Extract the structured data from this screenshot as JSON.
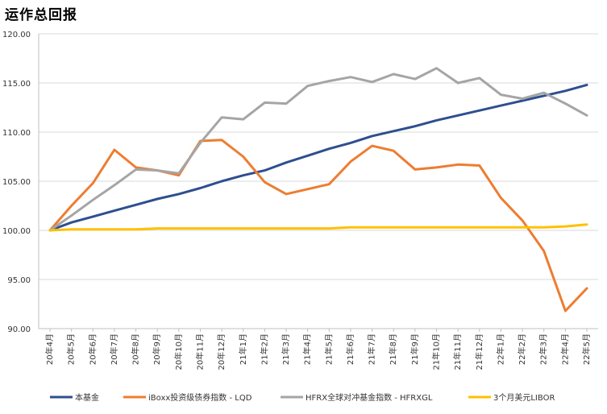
{
  "chart_data": {
    "type": "line",
    "title": "运作总回报",
    "xlabel": "",
    "ylabel": "",
    "ylim": [
      90,
      120
    ],
    "ytick_step": 5,
    "grid": "horizontal",
    "legend": "bottom",
    "categories": [
      "20年4月",
      "20年5月",
      "20年6月",
      "20年7月",
      "20年8月",
      "20年9月",
      "20年10月",
      "20年11月",
      "20年12月",
      "21年1月",
      "21年2月",
      "21年3月",
      "21年4月",
      "21年5月",
      "21年6月",
      "21年7月",
      "21年8月",
      "21年9月",
      "21年10月",
      "21年11月",
      "21年12月",
      "22年1月",
      "22年2月",
      "22年3月",
      "22年4月",
      "22年5月"
    ],
    "series": [
      {
        "name": "本基金",
        "color": "#2e4f8f",
        "values": [
          100.0,
          100.8,
          101.4,
          102.0,
          102.6,
          103.2,
          103.7,
          104.3,
          105.0,
          105.6,
          106.1,
          106.9,
          107.6,
          108.3,
          108.9,
          109.6,
          110.1,
          110.6,
          111.2,
          111.7,
          112.2,
          112.7,
          113.2,
          113.7,
          114.2,
          114.8
        ]
      },
      {
        "name": "iBoxx投资级债券指数 - LQD",
        "color": "#ed7d31",
        "values": [
          100.0,
          102.5,
          104.8,
          108.2,
          106.4,
          106.1,
          105.6,
          109.1,
          109.2,
          107.5,
          104.9,
          103.7,
          104.2,
          104.7,
          107.0,
          108.6,
          108.1,
          106.2,
          106.4,
          106.7,
          106.6,
          103.3,
          101.0,
          97.9,
          91.8,
          94.1
        ]
      },
      {
        "name": "HFRX全球对冲基金指数 - HFRXGL",
        "color": "#a5a5a5",
        "values": [
          100.0,
          101.5,
          103.1,
          104.6,
          106.2,
          106.1,
          105.8,
          108.9,
          111.5,
          111.3,
          113.0,
          112.9,
          114.7,
          115.2,
          115.6,
          115.1,
          115.9,
          115.4,
          116.5,
          115.0,
          115.5,
          113.8,
          113.4,
          114.0,
          112.9,
          111.7
        ]
      },
      {
        "name": "3个月美元LIBOR",
        "color": "#ffc000",
        "values": [
          100.0,
          100.1,
          100.1,
          100.1,
          100.1,
          100.2,
          100.2,
          100.2,
          100.2,
          100.2,
          100.2,
          100.2,
          100.2,
          100.2,
          100.3,
          100.3,
          100.3,
          100.3,
          100.3,
          100.3,
          100.3,
          100.3,
          100.3,
          100.3,
          100.4,
          100.6
        ]
      }
    ]
  }
}
